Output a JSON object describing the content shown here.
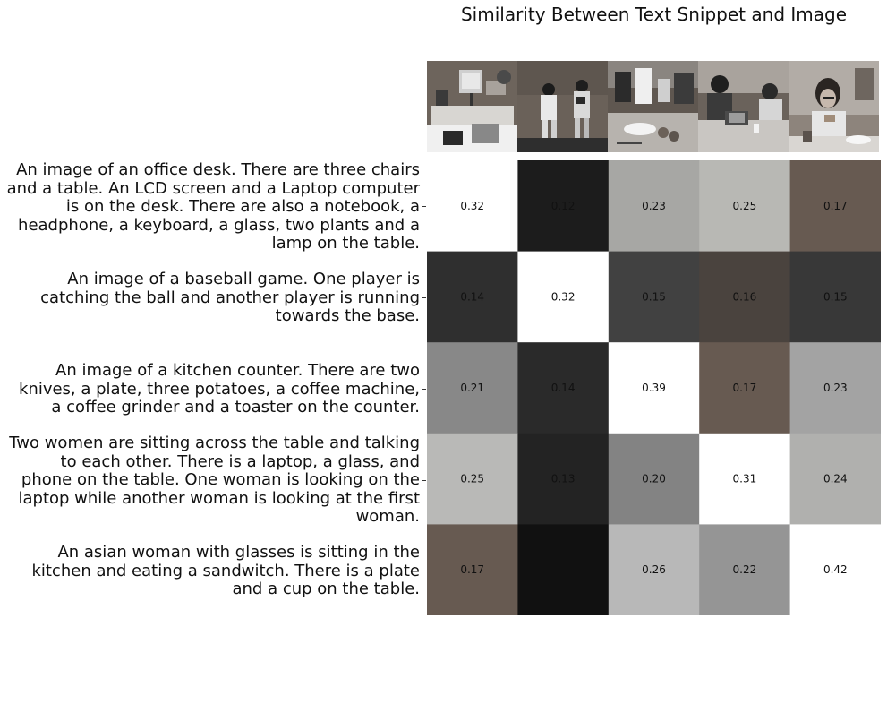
{
  "chart_data": {
    "type": "heatmap",
    "title": "Similarity Between Text Snippet and Image",
    "rows": [
      "An image of an office desk. There are three chairs\nand a table. An LCD screen and a Laptop computer\nis on the desk. There are also a notebook, a\nheadphone, a keyboard, a glass, two plants and a\nlamp on the table.",
      "An image of a baseball game. One player is\ncatching the ball and another player is running\ntowards the base.",
      "An image of a kitchen counter. There are two\nknives, a plate, three potatoes, a coffee machine,\na coffee grinder and a toaster on the counter.",
      "Two women are sitting across the table and talking\nto each other. There is a laptop, a glass, and\nphone on the table. One woman is looking on the\nlaptop while another woman is looking at the first\nwoman.",
      "An asian woman with glasses is sitting in the\nkitchen and eating a sandwitch. There is a plate\nand a cup on the table."
    ],
    "columns": [
      "office-desk-photo",
      "baseball-photo",
      "kitchen-counter-photo",
      "two-women-photo",
      "woman-eating-photo"
    ],
    "values": [
      [
        0.32,
        0.12,
        0.23,
        0.25,
        0.17
      ],
      [
        0.14,
        0.32,
        0.15,
        0.16,
        0.15
      ],
      [
        0.21,
        0.14,
        0.39,
        0.17,
        0.23
      ],
      [
        0.25,
        0.13,
        0.2,
        0.31,
        0.24
      ],
      [
        0.17,
        null,
        0.26,
        0.22,
        0.42
      ]
    ],
    "cell_colors": [
      [
        "#ffffff",
        "#1c1c1c",
        "#a7a7a4",
        "#b8b8b4",
        "#675a51"
      ],
      [
        "#2f2f2f",
        "#ffffff",
        "#414141",
        "#4a433e",
        "#383838"
      ],
      [
        "#888888",
        "#2a2a2a",
        "#ffffff",
        "#675a51",
        "#a3a3a3"
      ],
      [
        "#b9b9b7",
        "#232323",
        "#838383",
        "#ffffff",
        "#b0b0ae"
      ],
      [
        "#675a51",
        "#111111",
        "#b8b8b8",
        "#959595",
        "#ffffff"
      ]
    ],
    "grid": false,
    "legend": "none"
  }
}
